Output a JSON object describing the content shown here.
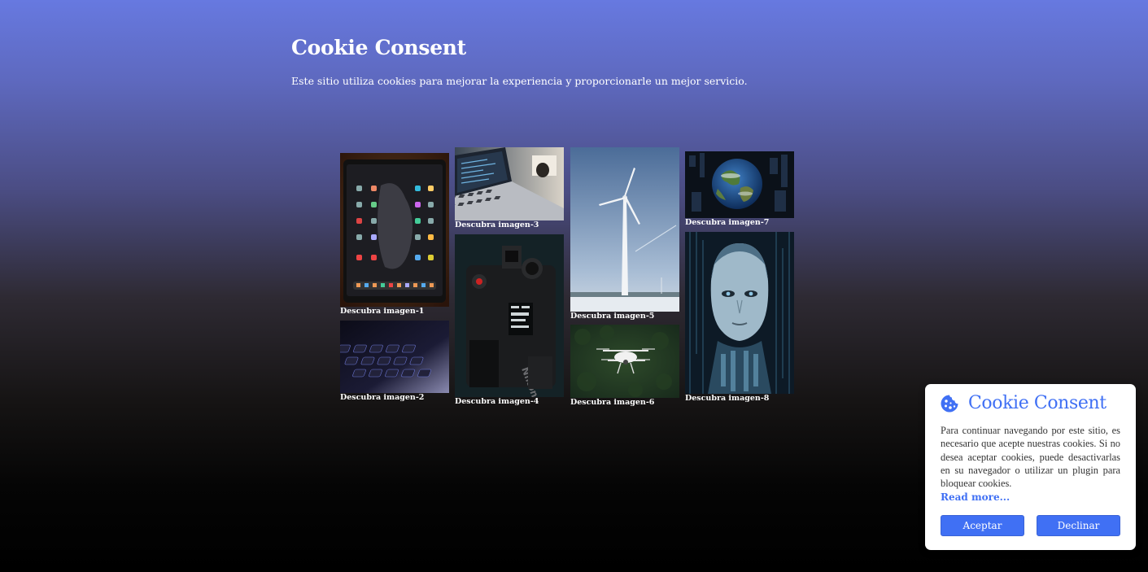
{
  "page": {
    "title": "Cookie Consent",
    "intro": "Este sitio utiliza cookies para mejorar la experiencia y proporcionarle un mejor servicio."
  },
  "gallery": {
    "items": [
      {
        "caption": "Descubra imagen-1",
        "icon": "tablet-photo"
      },
      {
        "caption": "Descubra imagen-2",
        "icon": "keyboard-photo"
      },
      {
        "caption": "Descubra imagen-3",
        "icon": "laptop-photo"
      },
      {
        "caption": "Descubra imagen-4",
        "icon": "camera-photo"
      },
      {
        "caption": "Descubra imagen-5",
        "icon": "wind-turbine-photo"
      },
      {
        "caption": "Descubra imagen-6",
        "icon": "drone-photo"
      },
      {
        "caption": "Descubra imagen-7",
        "icon": "earth-photo"
      },
      {
        "caption": "Descubra imagen-8",
        "icon": "robot-face-photo"
      }
    ]
  },
  "cookie": {
    "title": "Cookie Consent",
    "icon": "cookie-icon",
    "text": "Para continuar navegando por este sitio, es necesario que acepte nuestras cookies. Si no desea aceptar cookies, puede desactivarlas en su navegador o utilizar un plugin para bloquear cookies.",
    "read_more": "Read more...",
    "accept_label": "Aceptar",
    "decline_label": "Declinar",
    "accent_color": "#4070f4"
  }
}
